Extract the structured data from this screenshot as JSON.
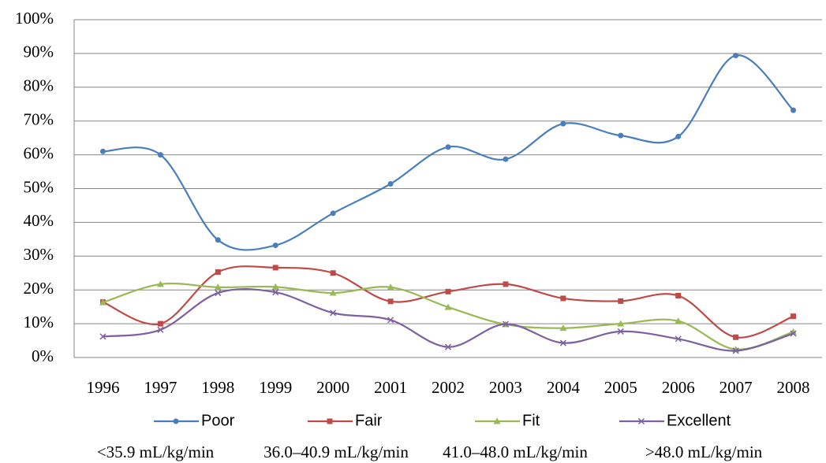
{
  "chart_data": {
    "type": "line",
    "categories": [
      "1996",
      "1997",
      "1998",
      "1999",
      "2000",
      "2001",
      "2002",
      "2003",
      "2004",
      "2005",
      "2006",
      "2007",
      "2008"
    ],
    "series": [
      {
        "name": "Poor",
        "color": "#4a7ebb",
        "marker": "circle",
        "values": [
          61,
          60,
          34.8,
          33.2,
          42.7,
          51.4,
          62.3,
          58.7,
          69.2,
          65.7,
          65.4,
          89.4,
          73.2
        ]
      },
      {
        "name": "Fair",
        "color": "#be4b48",
        "marker": "square",
        "values": [
          16.4,
          10,
          25.3,
          26.6,
          25,
          16.6,
          19.5,
          21.7,
          17.5,
          16.7,
          18.3,
          6,
          12.2
        ]
      },
      {
        "name": "Fit",
        "color": "#98b954",
        "marker": "triangle",
        "values": [
          16.3,
          21.7,
          20.8,
          20.9,
          19.1,
          20.8,
          14.9,
          9.8,
          8.7,
          10,
          10.8,
          2.4,
          7.6
        ]
      },
      {
        "name": "Excellent",
        "color": "#7d60a0",
        "marker": "x",
        "values": [
          6.2,
          8.2,
          19.1,
          19.3,
          13.2,
          11.1,
          3.1,
          9.9,
          4.3,
          7.7,
          5.5,
          2,
          7.1
        ]
      }
    ],
    "ylim": [
      0,
      100
    ],
    "yticks": [
      {
        "value": 0,
        "label": "0%"
      },
      {
        "value": 10,
        "label": "10%"
      },
      {
        "value": 20,
        "label": "20%"
      },
      {
        "value": 30,
        "label": "30%"
      },
      {
        "value": 40,
        "label": "40%"
      },
      {
        "value": 50,
        "label": "50%"
      },
      {
        "value": 60,
        "label": "60%"
      },
      {
        "value": 70,
        "label": "70%"
      },
      {
        "value": 80,
        "label": "80%"
      },
      {
        "value": 90,
        "label": "90%"
      },
      {
        "value": 100,
        "label": "100%"
      }
    ],
    "grid": true,
    "smooth": true,
    "legend": "bottom",
    "annotations": [
      "<35.9 mL/kg/min",
      "36.0–40.9 mL/kg/min",
      "41.0–48.0 mL/kg/min",
      ">48.0 mL/kg/min"
    ]
  }
}
